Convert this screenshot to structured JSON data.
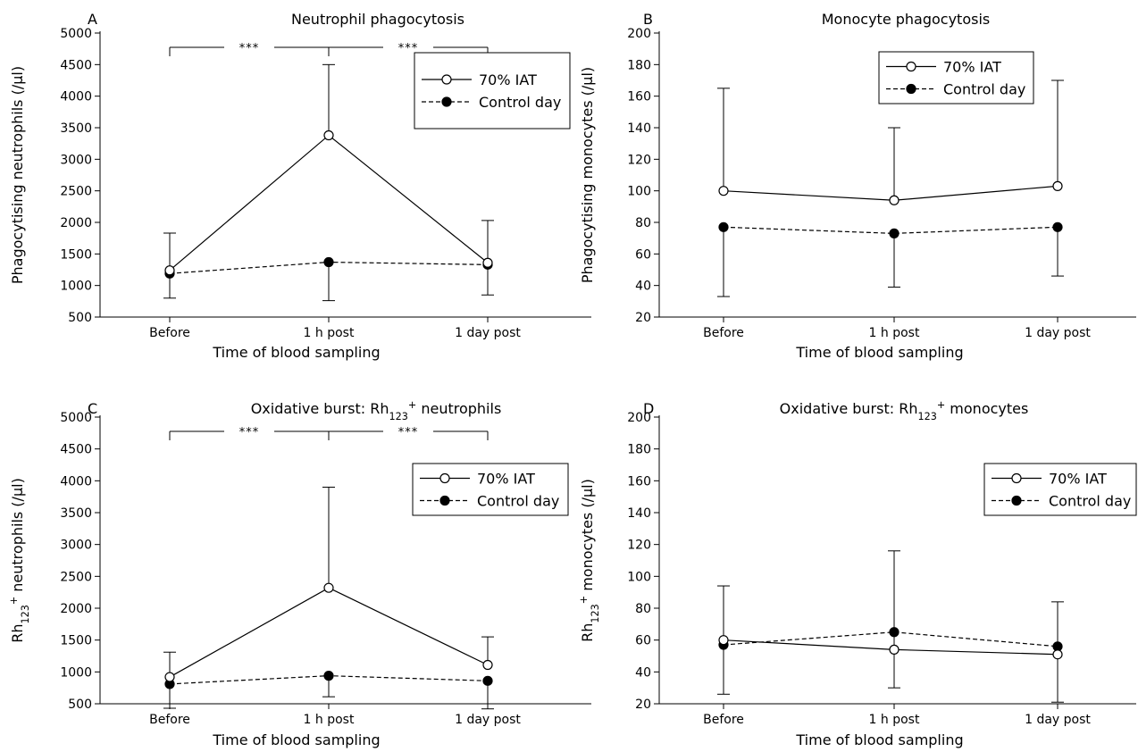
{
  "figure": {
    "colors": {
      "line": "#000000",
      "background": "#ffffff",
      "open_marker_fill": "#ffffff",
      "filled_marker_fill": "#000000"
    }
  },
  "chart_data": [
    {
      "panel": "A",
      "type": "line",
      "title": "Neutrophil phagocytosis",
      "xlabel": "Time of blood sampling",
      "ylabel": "Phagocytising neutrophils (/µl)",
      "categories": [
        "Before",
        "1 h post",
        "1 day post"
      ],
      "ylim": [
        500,
        5000
      ],
      "yticks": [
        500,
        1000,
        1500,
        2000,
        2500,
        3000,
        3500,
        4000,
        4500,
        5000
      ],
      "legend": "top-right",
      "series": [
        {
          "name": "70% IAT",
          "marker": "open-circle",
          "line": "solid",
          "values": [
            1240,
            3380,
            1360
          ],
          "error_upper": [
            1830,
            4500,
            2030
          ]
        },
        {
          "name": "Control day",
          "marker": "filled-circle",
          "line": "dashed",
          "values": [
            1190,
            1370,
            1330
          ],
          "error_lower": [
            800,
            760,
            850
          ]
        }
      ],
      "significance": [
        {
          "from": 0,
          "to": 1,
          "label": "***"
        },
        {
          "from": 1,
          "to": 2,
          "label": "***"
        }
      ]
    },
    {
      "panel": "B",
      "type": "line",
      "title": "Monocyte phagocytosis",
      "xlabel": "Time of blood sampling",
      "ylabel": "Phagocytising monocytes (/µl)",
      "categories": [
        "Before",
        "1 h post",
        "1 day post"
      ],
      "ylim": [
        20,
        200
      ],
      "yticks": [
        20,
        40,
        60,
        80,
        100,
        120,
        140,
        160,
        180,
        200
      ],
      "legend": "top-right",
      "series": [
        {
          "name": "70% IAT",
          "marker": "open-circle",
          "line": "solid",
          "values": [
            100,
            94,
            103
          ],
          "error_upper": [
            165,
            140,
            170
          ]
        },
        {
          "name": "Control day",
          "marker": "filled-circle",
          "line": "dashed",
          "values": [
            77,
            73,
            77
          ],
          "error_lower": [
            33,
            39,
            46
          ]
        }
      ],
      "significance": []
    },
    {
      "panel": "C",
      "type": "line",
      "title": "Oxidative burst: Rh",
      "title_sub": "123",
      "title_sup": "+",
      "title_suffix": " neutrophils",
      "xlabel": "Time of blood sampling",
      "ylabel": "Rh",
      "ylabel_sub": "123",
      "ylabel_sup": "+",
      "ylabel_suffix": " neutrophils (/µl)",
      "categories": [
        "Before",
        "1 h post",
        "1 day post"
      ],
      "ylim": [
        500,
        5000
      ],
      "yticks": [
        500,
        1000,
        1500,
        2000,
        2500,
        3000,
        3500,
        4000,
        4500,
        5000
      ],
      "legend": "top-right",
      "series": [
        {
          "name": "70% IAT",
          "marker": "open-circle",
          "line": "solid",
          "values": [
            920,
            2320,
            1110
          ],
          "error_upper": [
            1310,
            3900,
            1550
          ]
        },
        {
          "name": "Control day",
          "marker": "filled-circle",
          "line": "dashed",
          "values": [
            810,
            940,
            860
          ],
          "error_lower": [
            430,
            610,
            420
          ]
        }
      ],
      "significance": [
        {
          "from": 0,
          "to": 1,
          "label": "***"
        },
        {
          "from": 1,
          "to": 2,
          "label": "***"
        }
      ]
    },
    {
      "panel": "D",
      "type": "line",
      "title": "Oxidative burst: Rh",
      "title_sub": "123",
      "title_sup": "+",
      "title_suffix": " monocytes",
      "xlabel": "Time of blood sampling",
      "ylabel": "Rh",
      "ylabel_sub": "123",
      "ylabel_sup": "+",
      "ylabel_suffix": " monocytes (/µl)",
      "categories": [
        "Before",
        "1 h post",
        "1 day post"
      ],
      "ylim": [
        20,
        200
      ],
      "yticks": [
        20,
        40,
        60,
        80,
        100,
        120,
        140,
        160,
        180,
        200
      ],
      "legend": "top-right",
      "series": [
        {
          "name": "70% IAT",
          "marker": "open-circle",
          "line": "solid",
          "values": [
            60,
            54,
            51
          ],
          "error_upper": [
            94,
            116,
            84
          ],
          "error_lower": [
            26,
            30,
            21
          ]
        },
        {
          "name": "Control day",
          "marker": "filled-circle",
          "line": "dashed",
          "values": [
            57,
            65,
            56
          ]
        }
      ],
      "significance": []
    }
  ]
}
